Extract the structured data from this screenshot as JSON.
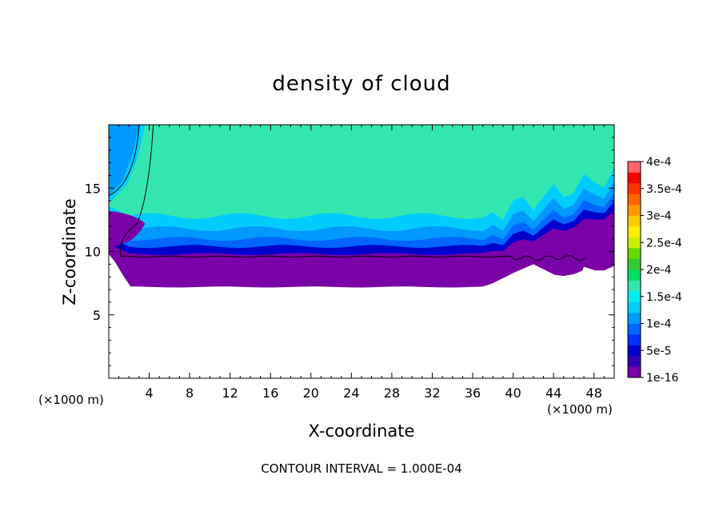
{
  "chart_data": {
    "type": "heatmap",
    "title": "density of cloud",
    "xlabel": "X-coordinate",
    "ylabel": "Z-coordinate",
    "x_unit": "(×1000 m)",
    "x_unit_right": "(×1000 m)",
    "xlim": [
      0,
      50
    ],
    "ylim": [
      0,
      20
    ],
    "x_ticks": [
      4,
      8,
      12,
      16,
      20,
      24,
      28,
      32,
      36,
      40,
      44,
      48
    ],
    "y_ticks": [
      5,
      10,
      15
    ],
    "colorbar": {
      "labels": [
        "1e-16",
        "5e-5",
        "1e-4",
        "1.5e-4",
        "2e-4",
        "2.5e-4",
        "3e-4",
        "3.5e-4",
        "4e-4"
      ],
      "colors": [
        "#7a00a8",
        "#3300b0",
        "#0000cc",
        "#0033ff",
        "#0066ff",
        "#0099ff",
        "#00ccff",
        "#00eeee",
        "#33e6b0",
        "#00e060",
        "#33cc33",
        "#66d900",
        "#ccee00",
        "#ffee00",
        "#ffcc00",
        "#ff9900",
        "#ff6600",
        "#ff3300",
        "#ff0000",
        "#ff6666"
      ]
    },
    "cloud_layers": [
      {
        "level": "1e-16",
        "color": "#7a00a8"
      },
      {
        "level": "5e-5",
        "color": "#0000cc"
      },
      {
        "level": "7.5e-5",
        "color": "#0066ff"
      },
      {
        "level": "1e-4",
        "color": "#0099ff"
      },
      {
        "level": "1.25e-4",
        "color": "#00ccff"
      },
      {
        "level": "1.5e-4",
        "color": "#33e6b0"
      }
    ],
    "cloud_base_z": 7.2,
    "cloud_top_z": 20,
    "contour_line_z": 9.6,
    "contour_interval_text": "CONTOUR INTERVAL = 1.000E-04"
  }
}
